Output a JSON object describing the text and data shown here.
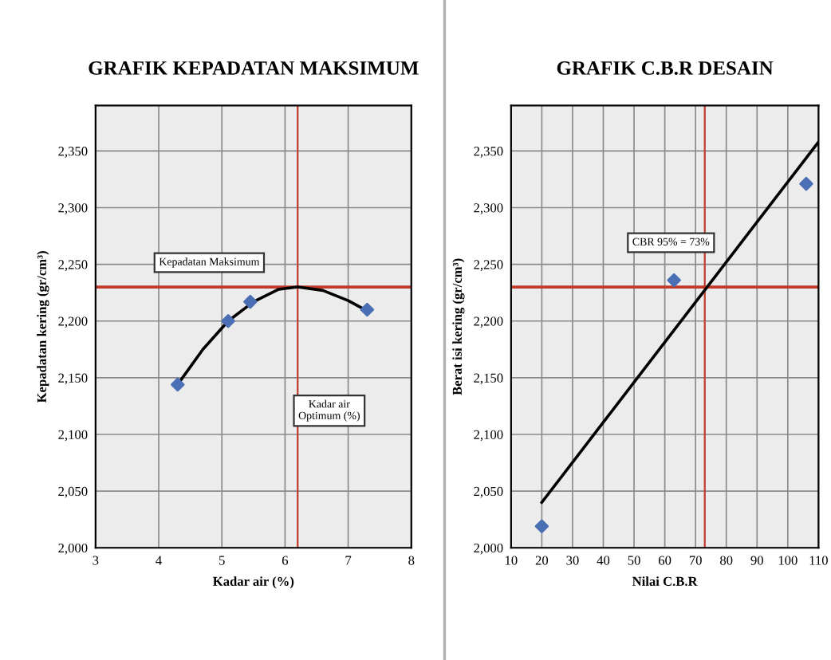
{
  "chart_data": [
    {
      "type": "scatter",
      "title": "GRAFIK KEPADATAN MAKSIMUM",
      "xlabel": "Kadar air (%)",
      "ylabel": "Kepadatan kering (gr/cm³)",
      "xlim": [
        3,
        8
      ],
      "xticks": [
        3,
        4,
        5,
        6,
        7,
        8
      ],
      "ylim": [
        2000,
        2390
      ],
      "yticks": [
        {
          "value": 2000,
          "label": "2,000"
        },
        {
          "value": 2050,
          "label": "2,050"
        },
        {
          "value": 2100,
          "label": "2,100"
        },
        {
          "value": 2150,
          "label": "2,150"
        },
        {
          "value": 2200,
          "label": "2,200"
        },
        {
          "value": 2250,
          "label": "2,250"
        },
        {
          "value": 2300,
          "label": "2,300"
        },
        {
          "value": 2350,
          "label": "2,350"
        }
      ],
      "grid": true,
      "series": [
        {
          "marker": "diamond",
          "color": "#4a6fb5",
          "x": [
            4.3,
            5.1,
            5.45,
            7.3
          ],
          "values": [
            2144,
            2200,
            2217,
            2210
          ]
        },
        {
          "type": "line",
          "marker": "none",
          "color": "#000000",
          "x": [
            4.3,
            4.7,
            5.1,
            5.5,
            5.9,
            6.2,
            6.6,
            7.0,
            7.3
          ],
          "values": [
            2144,
            2175,
            2200,
            2217,
            2228,
            2230,
            2227,
            2218,
            2209
          ]
        }
      ],
      "ref_lines": [
        {
          "axis": "y",
          "value": 2230,
          "color": "#c0392b"
        },
        {
          "axis": "x",
          "value": 6.2,
          "color": "#c0392b"
        }
      ],
      "annotations": [
        "Kepadatan Maksimum",
        "Kadar air\nOptimum (%)"
      ]
    },
    {
      "type": "scatter",
      "title": "GRAFIK C.B.R DESAIN",
      "xlabel": "Nilai C.B.R",
      "ylabel": "Berat isi kering (gr/cm³)",
      "xlim": [
        10,
        110
      ],
      "xticks": [
        10,
        20,
        30,
        40,
        50,
        60,
        70,
        80,
        90,
        100,
        110
      ],
      "ylim": [
        2000,
        2390
      ],
      "yticks": [
        {
          "value": 2000,
          "label": "2,000"
        },
        {
          "value": 2050,
          "label": "2,050"
        },
        {
          "value": 2100,
          "label": "2,100"
        },
        {
          "value": 2150,
          "label": "2,150"
        },
        {
          "value": 2200,
          "label": "2,200"
        },
        {
          "value": 2250,
          "label": "2,250"
        },
        {
          "value": 2300,
          "label": "2,300"
        },
        {
          "value": 2350,
          "label": "2,350"
        }
      ],
      "grid": true,
      "series": [
        {
          "marker": "diamond",
          "color": "#4a6fb5",
          "x": [
            20,
            63,
            106
          ],
          "values": [
            2019,
            2236,
            2321
          ]
        },
        {
          "type": "line",
          "marker": "none",
          "color": "#000000",
          "x": [
            20,
            110
          ],
          "values": [
            2040,
            2358
          ]
        }
      ],
      "ref_lines": [
        {
          "axis": "y",
          "value": 2230,
          "color": "#c0392b"
        },
        {
          "axis": "x",
          "value": 73,
          "color": "#c0392b"
        }
      ],
      "annotations": [
        "CBR 95% = 73%"
      ]
    }
  ]
}
